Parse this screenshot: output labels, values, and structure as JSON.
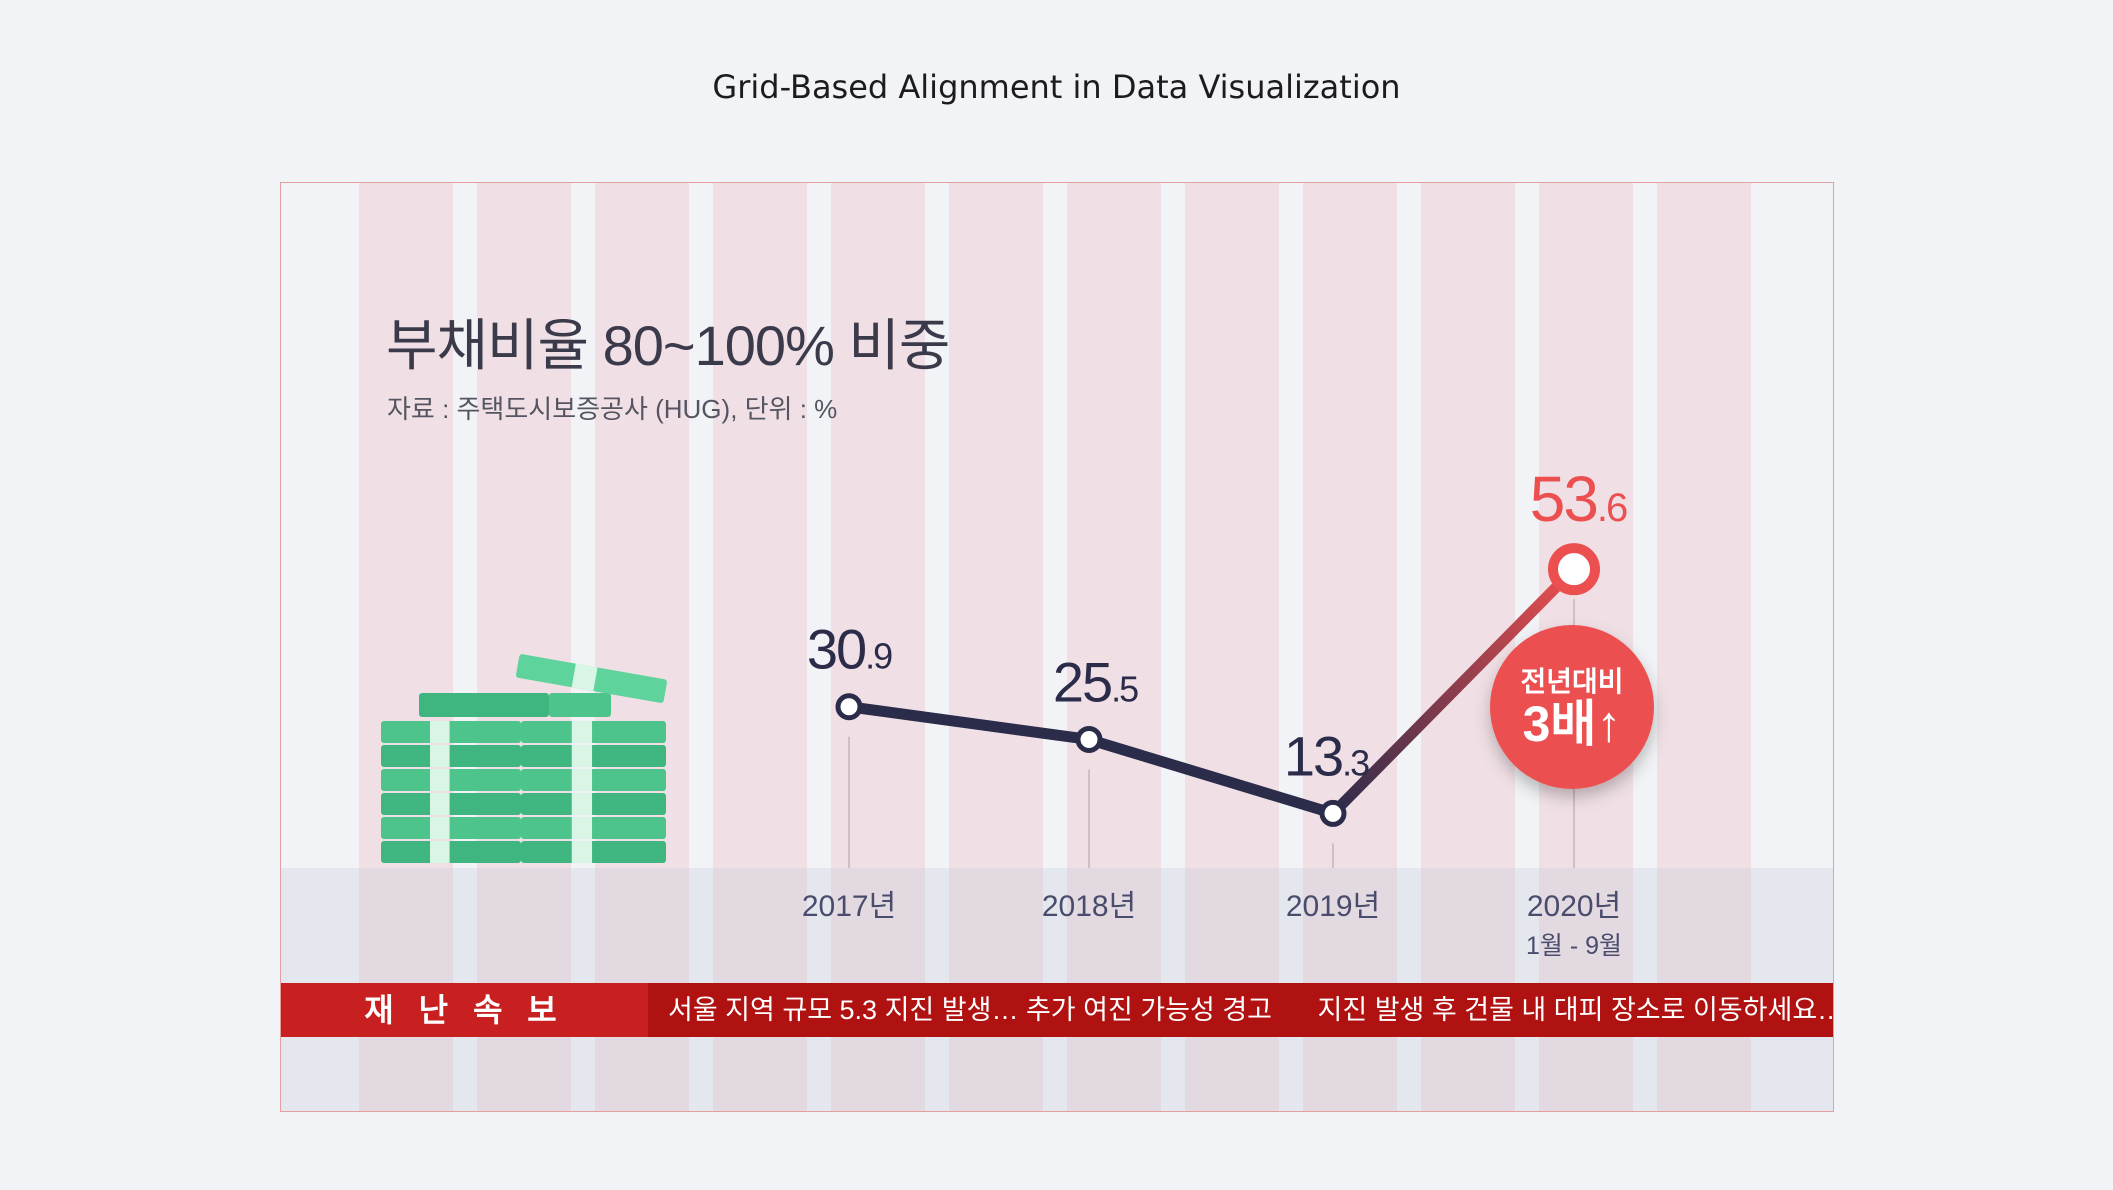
{
  "page_title": "Grid-Based Alignment in Data Visualization",
  "chart_data": {
    "type": "line",
    "title": "부채비율 80~100% 비중",
    "subtitle": "자료 : 주택도시보증공사 (HUG), 단위 : %",
    "categories": [
      "2017년",
      "2018년",
      "2019년",
      "2020년"
    ],
    "category_sublabels": [
      "",
      "",
      "",
      "1월 - 9월"
    ],
    "values": [
      30.9,
      25.5,
      13.3,
      53.6
    ],
    "value_labels": [
      {
        "major": "30",
        "minor": ".9"
      },
      {
        "major": "25",
        "minor": ".5"
      },
      {
        "major": "13",
        "minor": ".3"
      },
      {
        "major": "53",
        "minor": ".6"
      }
    ],
    "ylim": [
      0,
      60
    ],
    "highlight_index": 3,
    "badge": {
      "line1": "전년대비",
      "line2": "3배↑"
    },
    "colors": {
      "line": "#2b2b4a",
      "highlight": "#ec4f4f",
      "value_text": "#2b2b4a",
      "tick_text": "#4a4c6c"
    }
  },
  "ticker": {
    "label": "재 난 속 보",
    "items": [
      "서울 지역 규모 5.3 지진 발생… 추가 여진 가능성 경고",
      "지진 발생 후 건물 내 대피 장소로 이동하세요…"
    ]
  },
  "illustration": {
    "icon": "money-stack-icon",
    "color": "#3fb67f"
  }
}
